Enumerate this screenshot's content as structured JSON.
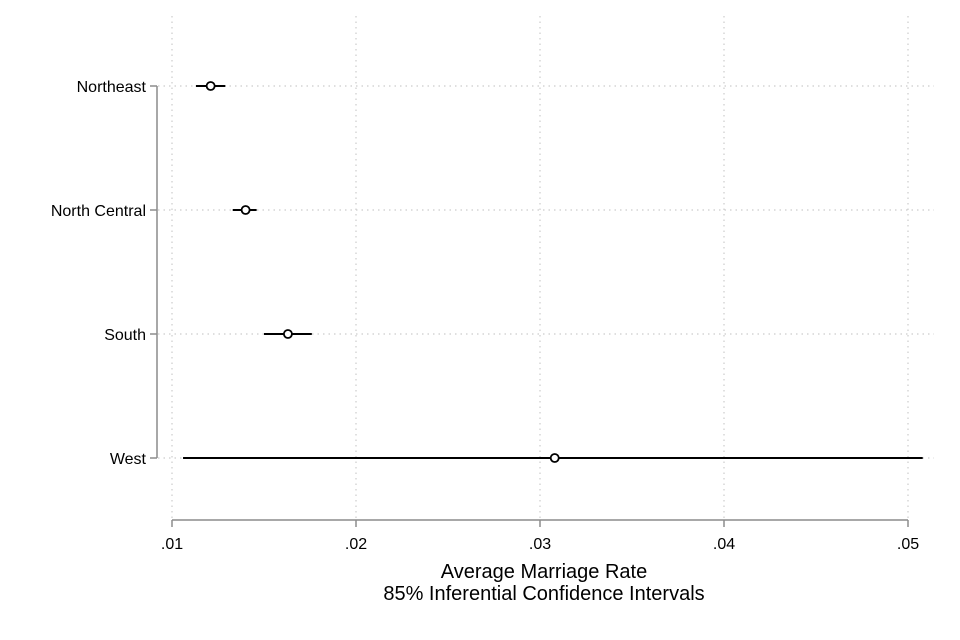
{
  "chart_data": {
    "type": "scatter",
    "subtype": "dot-with-confidence-intervals",
    "orientation": "horizontal",
    "categories": [
      "Northeast",
      "North Central",
      "South",
      "West"
    ],
    "series": [
      {
        "estimate": [
          0.0121,
          0.014,
          0.0163,
          0.0308
        ],
        "ci_low": [
          0.0113,
          0.0133,
          0.015,
          0.0106
        ],
        "ci_high": [
          0.0129,
          0.0146,
          0.0176,
          0.0508
        ]
      }
    ],
    "xlabel": "Average Marriage Rate",
    "xlabel_sub": "85% Inferential Confidence Intervals",
    "ylabel": "",
    "xlim": [
      0.01,
      0.05
    ],
    "xticks": [
      0.01,
      0.02,
      0.03,
      0.04,
      0.05
    ],
    "xtick_labels": [
      ".01",
      ".02",
      ".03",
      ".04",
      ".05"
    ],
    "grid": true,
    "grid_style": "dotted",
    "legend": "none",
    "colors": {
      "axis": "#8c8c8c",
      "grid": "#cccccc",
      "marker": "#000000",
      "ci_line": "#000000"
    }
  }
}
